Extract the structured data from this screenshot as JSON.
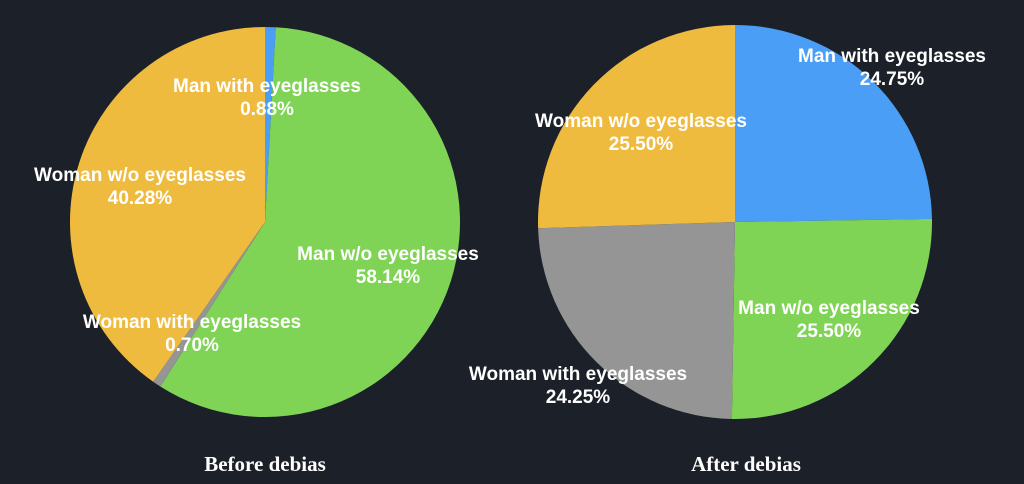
{
  "chart_data": [
    {
      "type": "pie",
      "title": "Before debias",
      "slices": [
        {
          "label": "Man with eyeglasses",
          "value": 0.88,
          "value_label": "0.88%",
          "color": "#4a9ef5"
        },
        {
          "label": "Man w/o eyeglasses",
          "value": 58.14,
          "value_label": "58.14%",
          "color": "#80d455"
        },
        {
          "label": "Woman with eyeglasses",
          "value": 0.7,
          "value_label": "0.70%",
          "color": "#959595"
        },
        {
          "label": "Woman w/o eyeglasses",
          "value": 40.28,
          "value_label": "40.28%",
          "color": "#efbb3f"
        }
      ]
    },
    {
      "type": "pie",
      "title": "After debias",
      "slices": [
        {
          "label": "Man with eyeglasses",
          "value": 24.75,
          "value_label": "24.75%",
          "color": "#4a9ef5"
        },
        {
          "label": "Man w/o eyeglasses",
          "value": 25.5,
          "value_label": "25.50%",
          "color": "#80d455"
        },
        {
          "label": "Woman with eyeglasses",
          "value": 24.25,
          "value_label": "24.25%",
          "color": "#959595"
        },
        {
          "label": "Woman w/o eyeglasses",
          "value": 25.5,
          "value_label": "25.50%",
          "color": "#efbb3f"
        }
      ]
    }
  ]
}
